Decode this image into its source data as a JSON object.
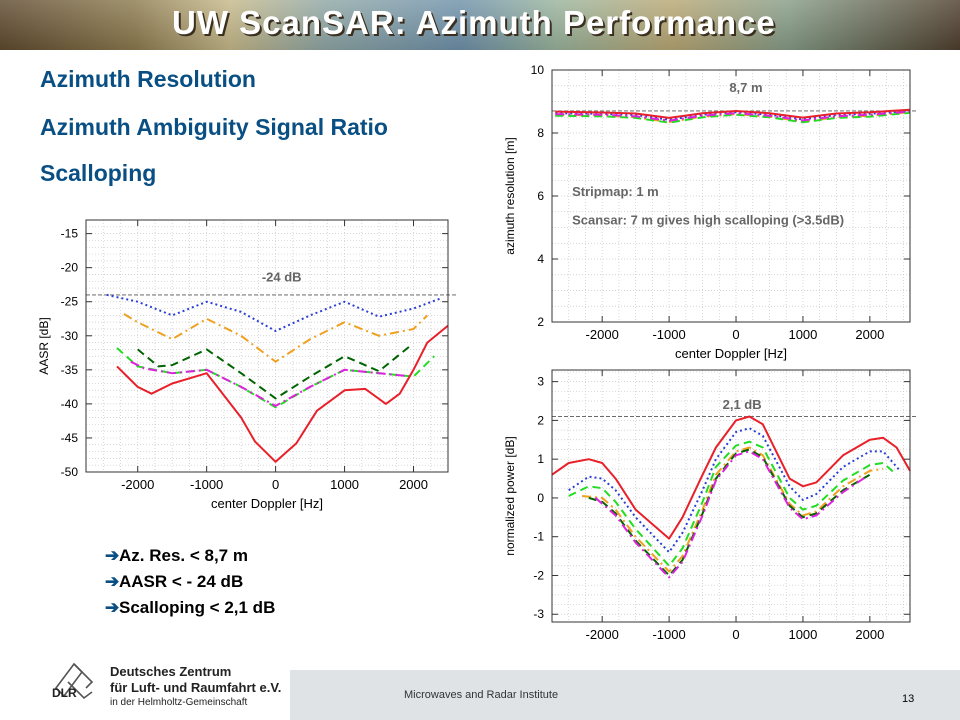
{
  "slide": {
    "title": "UW ScanSAR: Azimuth Performance",
    "headings": [
      "Azimuth Resolution",
      "Azimuth Ambiguity Signal Ratio",
      "Scalloping"
    ],
    "conclusions": [
      "Az. Res. < 8,7 m",
      "AASR < - 24 dB",
      "Scalloping < 2,1 dB"
    ],
    "conclusion_icon": "right-arrow-icon",
    "footer_text": "Microwaves and Radar Institute",
    "page_number": "13",
    "logo": {
      "abbr": "DLR",
      "line1": "Deutsches Zentrum",
      "line2": "für Luft- und Raumfahrt e.V.",
      "line3": "in der Helmholtz-Gemeinschaft"
    }
  },
  "colors": {
    "title": "#ffffff",
    "heading": "#0a4f83",
    "red": "#e8202a",
    "blue": "#2a3fd6",
    "orange": "#f0a020",
    "darkgreen": "#006400",
    "green": "#22dd22",
    "magenta": "#dd22dd",
    "reference": "#555555",
    "annotation": "#666666"
  },
  "chart_data": [
    {
      "type": "line",
      "xlabel": "center Doppler [Hz]",
      "ylabel": "AASR [dB]",
      "xlim": [
        -2750,
        2500
      ],
      "ylim": [
        -50,
        -13
      ],
      "xticks": [
        -2000,
        -1000,
        0,
        1000,
        2000
      ],
      "yticks": [
        -15,
        -20,
        -25,
        -30,
        -35,
        -40,
        -45,
        -50
      ],
      "grid": true,
      "annotations": [
        {
          "text": "-24 dB",
          "x": -200,
          "y": -22
        }
      ],
      "reference_line": -24,
      "series": [
        {
          "color": "#2a3fd6",
          "style": "dotted",
          "x": [
            -2450,
            -2000,
            -1500,
            -1000,
            -500,
            0,
            500,
            1000,
            1500,
            2000,
            2400
          ],
          "y": [
            -24.0,
            -25.0,
            -27.0,
            -25.0,
            -26.5,
            -29.3,
            -27.0,
            -25.0,
            -27.2,
            -26.0,
            -24.5
          ]
        },
        {
          "color": "#f0a020",
          "style": "dashdot",
          "x": [
            -2200,
            -2000,
            -1500,
            -1000,
            -500,
            0,
            500,
            1000,
            1500,
            2000,
            2200
          ],
          "y": [
            -26.8,
            -28.0,
            -30.5,
            -27.5,
            -30.0,
            -33.8,
            -30.5,
            -28.0,
            -30.0,
            -29.0,
            -27.0
          ]
        },
        {
          "color": "#006400",
          "style": "dashed",
          "x": [
            -2000,
            -1700,
            -1500,
            -1000,
            -500,
            0,
            500,
            1000,
            1500,
            1950
          ],
          "y": [
            -32.0,
            -34.5,
            -34.3,
            -32.0,
            -35.5,
            -39.2,
            -36.0,
            -33.0,
            -35.2,
            -31.5
          ]
        },
        {
          "color": "#22dd22",
          "style": "dashed",
          "x": [
            -2300,
            -2000,
            -1500,
            -1000,
            -500,
            0,
            500,
            1000,
            1500,
            2000,
            2300
          ],
          "y": [
            -31.8,
            -34.5,
            -35.5,
            -35.0,
            -37.5,
            -40.5,
            -37.5,
            -35.0,
            -35.5,
            -36.0,
            -33.0
          ]
        },
        {
          "color": "#dd22dd",
          "style": "dashdot",
          "x": [
            -2100,
            -1900,
            -1500,
            -1000,
            -500,
            0,
            500,
            1000,
            1500,
            2000
          ],
          "y": [
            -33.8,
            -34.8,
            -35.5,
            -35.0,
            -37.5,
            -40.3,
            -37.5,
            -35.0,
            -35.5,
            -36.0
          ]
        },
        {
          "color": "#e8202a",
          "style": "solid",
          "x": [
            -2300,
            -2000,
            -1800,
            -1500,
            -1000,
            -500,
            -300,
            0,
            300,
            600,
            1000,
            1300,
            1600,
            1800,
            2000,
            2200,
            2500
          ],
          "y": [
            -34.5,
            -37.5,
            -38.5,
            -37.0,
            -35.5,
            -42.0,
            -45.5,
            -48.5,
            -45.8,
            -41.0,
            -38.0,
            -37.8,
            -40.0,
            -38.5,
            -35.0,
            -31.0,
            -28.5
          ]
        }
      ]
    },
    {
      "type": "line",
      "xlabel": "center Doppler [Hz]",
      "ylabel": "azimuth resolution [m]",
      "xlim": [
        -2750,
        2600
      ],
      "ylim": [
        2,
        10
      ],
      "xticks": [
        -2000,
        -1000,
        0,
        1000,
        2000
      ],
      "yticks": [
        2,
        4,
        6,
        8,
        10
      ],
      "grid": true,
      "annotations": [
        {
          "text": "8,7 m",
          "x": -100,
          "y": 9.3
        },
        {
          "text": "Stripmap: 1 m",
          "x": -2450,
          "y": 6.0
        },
        {
          "text": "Scansar: 7 m gives high scalloping (>3.5dB)",
          "x": -2450,
          "y": 5.1
        }
      ],
      "reference_line": 8.7,
      "series": [
        {
          "color": "#f0a020",
          "style": "dashdot",
          "x": [
            -2700,
            -2000,
            -1500,
            -1000,
            -500,
            0,
            500,
            1000,
            1500,
            2000,
            2600
          ],
          "y": [
            8.58,
            8.56,
            8.5,
            8.35,
            8.52,
            8.6,
            8.52,
            8.36,
            8.5,
            8.55,
            8.66
          ]
        },
        {
          "color": "#22dd22",
          "style": "dashed",
          "x": [
            -2700,
            -2000,
            -1500,
            -1000,
            -500,
            0,
            500,
            1000,
            1500,
            2000,
            2600
          ],
          "y": [
            8.55,
            8.53,
            8.48,
            8.33,
            8.5,
            8.58,
            8.5,
            8.34,
            8.48,
            8.52,
            8.64
          ]
        },
        {
          "color": "#2a3fd6",
          "style": "dotted",
          "x": [
            -2700,
            -2000,
            -1500,
            -1000,
            -500,
            0,
            500,
            1000,
            1500,
            2000,
            2600
          ],
          "y": [
            8.63,
            8.61,
            8.57,
            8.42,
            8.58,
            8.66,
            8.58,
            8.43,
            8.57,
            8.61,
            8.7
          ]
        },
        {
          "color": "#dd22dd",
          "style": "dashdot",
          "x": [
            -2700,
            -2000,
            -1500,
            -1000,
            -500,
            0,
            500,
            1000,
            1500,
            2000,
            2600
          ],
          "y": [
            8.6,
            8.58,
            8.53,
            8.39,
            8.55,
            8.63,
            8.55,
            8.4,
            8.53,
            8.58,
            8.68
          ]
        },
        {
          "color": "#e8202a",
          "style": "solid",
          "x": [
            -2700,
            -2000,
            -1500,
            -1000,
            -500,
            0,
            500,
            1000,
            1500,
            2000,
            2600
          ],
          "y": [
            8.68,
            8.65,
            8.62,
            8.48,
            8.63,
            8.7,
            8.63,
            8.49,
            8.62,
            8.66,
            8.74
          ]
        }
      ]
    },
    {
      "type": "line",
      "xlabel": "center Doppler [Hz]",
      "ylabel": "normalized power [dB]",
      "xlim": [
        -2750,
        2600
      ],
      "ylim": [
        -3.2,
        3.3
      ],
      "xticks": [
        -2000,
        -1000,
        0,
        1000,
        2000
      ],
      "yticks": [
        3,
        2,
        1,
        0,
        -1,
        -2,
        -3
      ],
      "grid": true,
      "annotations": [
        {
          "text": "2,1 dB",
          "x": -200,
          "y": 2.3
        }
      ],
      "reference_line": 2.1,
      "series": [
        {
          "color": "#e8202a",
          "style": "solid",
          "x": [
            -2750,
            -2500,
            -2200,
            -2000,
            -1800,
            -1500,
            -1000,
            -800,
            -500,
            -300,
            0,
            200,
            400,
            800,
            1000,
            1200,
            1600,
            2000,
            2200,
            2400,
            2600
          ],
          "y": [
            0.6,
            0.9,
            1.0,
            0.9,
            0.5,
            -0.3,
            -1.05,
            -0.5,
            0.6,
            1.3,
            2.0,
            2.1,
            1.9,
            0.5,
            0.3,
            0.4,
            1.1,
            1.5,
            1.55,
            1.3,
            0.7
          ]
        },
        {
          "color": "#2a3fd6",
          "style": "dotted",
          "x": [
            -2500,
            -2200,
            -2000,
            -1800,
            -1500,
            -1000,
            -800,
            -500,
            -300,
            0,
            200,
            400,
            800,
            1000,
            1200,
            1600,
            2000,
            2200,
            2450
          ],
          "y": [
            0.2,
            0.55,
            0.5,
            0.2,
            -0.5,
            -1.4,
            -0.9,
            0.2,
            1.0,
            1.7,
            1.8,
            1.6,
            0.3,
            -0.05,
            0.1,
            0.8,
            1.2,
            1.2,
            0.7
          ]
        },
        {
          "color": "#22dd22",
          "style": "dashed",
          "x": [
            -2500,
            -2200,
            -2000,
            -1800,
            -1500,
            -1000,
            -800,
            -500,
            -300,
            0,
            200,
            400,
            800,
            1000,
            1200,
            1600,
            2000,
            2200,
            2400
          ],
          "y": [
            0.05,
            0.3,
            0.25,
            -0.1,
            -0.8,
            -1.75,
            -1.3,
            -0.1,
            0.8,
            1.35,
            1.45,
            1.3,
            0.0,
            -0.3,
            -0.2,
            0.45,
            0.85,
            0.9,
            0.6
          ]
        },
        {
          "color": "#f0a020",
          "style": "dashdot",
          "x": [
            -2300,
            -2000,
            -1800,
            -1500,
            -1000,
            -800,
            -500,
            -300,
            0,
            200,
            400,
            800,
            1000,
            1200,
            1600,
            2000,
            2200
          ],
          "y": [
            0.05,
            0.0,
            -0.3,
            -1.0,
            -1.9,
            -1.5,
            -0.3,
            0.6,
            1.2,
            1.3,
            1.1,
            -0.15,
            -0.45,
            -0.35,
            0.3,
            0.7,
            0.75
          ]
        },
        {
          "color": "#006400",
          "style": "dashed",
          "x": [
            -2200,
            -2000,
            -1800,
            -1500,
            -1000,
            -800,
            -500,
            -300,
            0,
            200,
            400,
            800,
            1000,
            1200,
            1600,
            2000
          ],
          "y": [
            0.0,
            -0.1,
            -0.4,
            -1.1,
            -2.0,
            -1.6,
            -0.4,
            0.5,
            1.15,
            1.25,
            1.05,
            -0.2,
            -0.5,
            -0.4,
            0.2,
            0.6
          ]
        },
        {
          "color": "#dd22dd",
          "style": "dashdot",
          "x": [
            -2100,
            -1800,
            -1500,
            -1000,
            -800,
            -500,
            -300,
            0,
            200,
            400,
            800,
            1000,
            1200,
            1600,
            1950
          ],
          "y": [
            0.0,
            -0.45,
            -1.15,
            -2.05,
            -1.65,
            -0.45,
            0.45,
            1.1,
            1.2,
            1.0,
            -0.25,
            -0.55,
            -0.45,
            0.15,
            0.55
          ]
        }
      ]
    }
  ]
}
